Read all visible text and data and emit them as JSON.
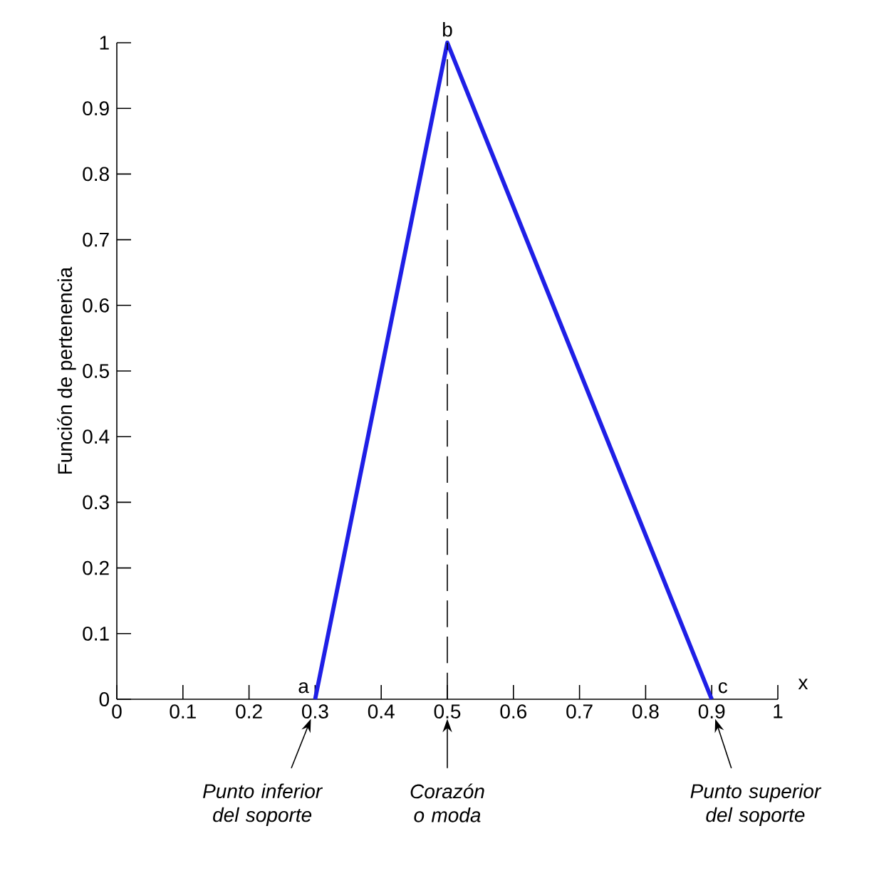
{
  "chart_data": {
    "type": "line",
    "xlabel": "x",
    "ylabel": "Función de pertenencia",
    "x": [
      0.3,
      0.5,
      0.9
    ],
    "series": [
      {
        "color": "#1f1fe6",
        "values": [
          0,
          1,
          0
        ]
      }
    ],
    "xlim": [
      0,
      1
    ],
    "ylim": [
      0,
      1
    ],
    "xticks": [
      0,
      0.1,
      0.2,
      0.3,
      0.4,
      0.5,
      0.6,
      0.7,
      0.8,
      0.9,
      1
    ],
    "yticks": [
      0,
      0.1,
      0.2,
      0.3,
      0.4,
      0.5,
      0.6,
      0.7,
      0.8,
      0.9,
      1
    ],
    "marker": "none",
    "line_style": "solid",
    "ref_lines": [
      {
        "axis": "x",
        "value": 0.5,
        "line_style": "dashed",
        "color": "#000000"
      }
    ],
    "annotations": [
      {
        "text": "a",
        "x": 0.3,
        "y": 0
      },
      {
        "text": "b",
        "x": 0.5,
        "y": 1
      },
      {
        "text": "c",
        "x": 0.9,
        "y": 0
      },
      "Punto inferior del soporte",
      "Corazón o moda",
      "Punto superior del soporte"
    ]
  }
}
